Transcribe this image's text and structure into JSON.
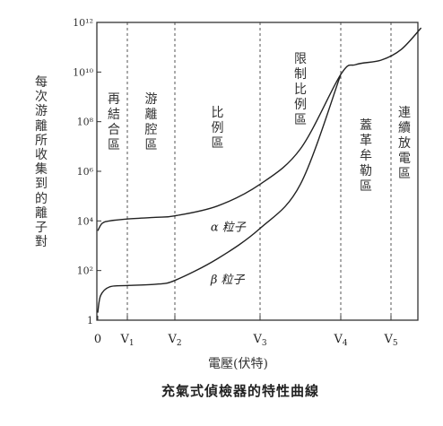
{
  "chart_data": {
    "type": "line",
    "title": "充氣式偵檢器的特性曲線",
    "xlabel": "電壓(伏特)",
    "ylabel": "每次游離所收集到的離子對",
    "yscale": "log",
    "ylim": [
      1,
      1000000000000
    ],
    "y_ticks": [
      {
        "value": 1,
        "label": "1"
      },
      {
        "value": 100,
        "label": "10²"
      },
      {
        "value": 10000,
        "label": "10⁴"
      },
      {
        "value": 1000000,
        "label": "10⁶"
      },
      {
        "value": 100000000,
        "label": "10⁸"
      },
      {
        "value": 10000000000,
        "label": "10¹⁰"
      },
      {
        "value": 1000000000000,
        "label": "10¹²"
      }
    ],
    "x_ticks": [
      "0",
      "V1",
      "V2",
      "V3",
      "V4",
      "V5"
    ],
    "x_tick_positions": [
      0,
      1,
      2,
      3,
      4,
      5
    ],
    "boundaries": [
      1,
      2,
      3,
      4,
      5
    ],
    "regions": [
      {
        "name": "再結合區",
        "x": 0.5
      },
      {
        "name": "游離腔區",
        "x": 1.5
      },
      {
        "name": "比例區",
        "x": 2.5
      },
      {
        "name": "限制比例區",
        "x": 3.5
      },
      {
        "name": "蓋革牟勒區",
        "x": 4.5
      },
      {
        "name": "連續放電區",
        "x": 5.3
      }
    ],
    "series": [
      {
        "name": "α 粒子",
        "label_at": {
          "x": 2.42,
          "y": 4000
        },
        "points": [
          {
            "x": 0.0,
            "y": 4000
          },
          {
            "x": 0.15,
            "y": 8000
          },
          {
            "x": 0.4,
            "y": 10000
          },
          {
            "x": 1.0,
            "y": 12000
          },
          {
            "x": 1.6,
            "y": 14000
          },
          {
            "x": 2.0,
            "y": 16000
          },
          {
            "x": 2.5,
            "y": 40000
          },
          {
            "x": 3.0,
            "y": 300000
          },
          {
            "x": 3.5,
            "y": 8000000
          },
          {
            "x": 4.0,
            "y": 8000000000
          },
          {
            "x": 4.3,
            "y": 20000000000
          },
          {
            "x": 4.8,
            "y": 30000000000
          },
          {
            "x": 5.2,
            "y": 80000000000
          },
          {
            "x": 5.6,
            "y": 600000000000
          }
        ]
      },
      {
        "name": "β 粒子",
        "label_at": {
          "x": 2.42,
          "y": 30
        },
        "points": [
          {
            "x": 0.0,
            "y": 2
          },
          {
            "x": 0.1,
            "y": 10
          },
          {
            "x": 0.4,
            "y": 22
          },
          {
            "x": 1.0,
            "y": 25
          },
          {
            "x": 1.6,
            "y": 28
          },
          {
            "x": 2.0,
            "y": 40
          },
          {
            "x": 2.5,
            "y": 300
          },
          {
            "x": 3.0,
            "y": 5000
          },
          {
            "x": 3.5,
            "y": 300000
          },
          {
            "x": 4.0,
            "y": 8000000000
          }
        ]
      }
    ]
  }
}
